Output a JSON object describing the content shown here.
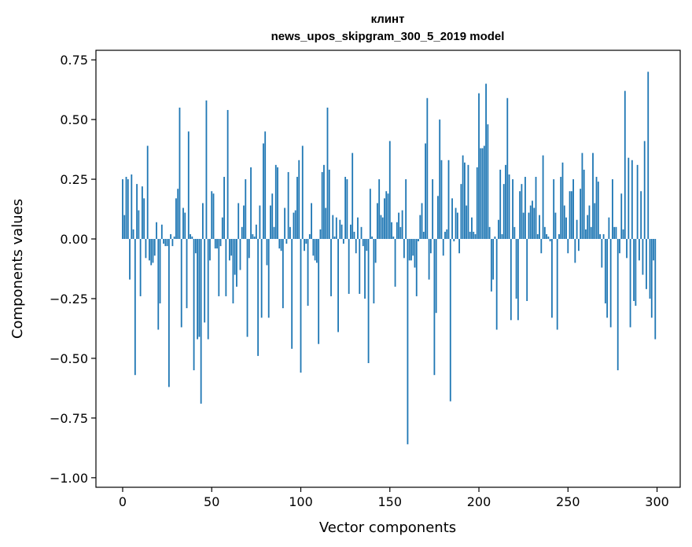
{
  "chart_data": {
    "type": "bar",
    "title_line1": "клинт",
    "title_line2": "news_upos_skipgram_300_5_2019 model",
    "xlabel": "Vector components",
    "ylabel": "Components values",
    "xlim": [
      -15,
      313
    ],
    "ylim": [
      -1.04,
      0.79
    ],
    "xticks": [
      0,
      50,
      100,
      150,
      200,
      250,
      300
    ],
    "xtick_labels": [
      "0",
      "50",
      "100",
      "150",
      "200",
      "250",
      "300"
    ],
    "yticks": [
      0.75,
      0.5,
      0.25,
      0.0,
      -0.25,
      -0.5,
      -0.75,
      -1.0
    ],
    "ytick_labels": [
      "0.75",
      "0.50",
      "0.25",
      "0.00",
      "−0.25",
      "−0.50",
      "−0.75",
      "−1.00"
    ],
    "color": "#1f77b4",
    "x": "0..299",
    "values": [
      0.25,
      0.1,
      0.26,
      0.25,
      -0.17,
      0.27,
      0.04,
      -0.57,
      0.23,
      0.12,
      -0.24,
      0.22,
      0.17,
      -0.08,
      0.39,
      -0.09,
      -0.11,
      -0.1,
      -0.07,
      0.07,
      -0.38,
      -0.27,
      0.06,
      -0.02,
      -0.03,
      -0.03,
      -0.62,
      0.02,
      -0.03,
      0.01,
      0.17,
      0.21,
      0.55,
      -0.37,
      0.13,
      0.11,
      -0.29,
      0.45,
      0.02,
      0.01,
      -0.55,
      -0.06,
      -0.42,
      -0.41,
      -0.69,
      0.15,
      -0.35,
      0.58,
      -0.42,
      -0.09,
      0.2,
      0.19,
      -0.04,
      -0.04,
      -0.24,
      -0.03,
      0.09,
      0.26,
      -0.24,
      0.54,
      -0.09,
      -0.07,
      -0.27,
      -0.15,
      -0.2,
      0.15,
      -0.13,
      0.05,
      0.14,
      0.25,
      -0.41,
      -0.08,
      0.3,
      0.02,
      0.01,
      0.06,
      -0.49,
      0.14,
      -0.33,
      0.4,
      0.45,
      -0.11,
      -0.33,
      0.14,
      0.19,
      0.05,
      0.31,
      0.3,
      -0.04,
      -0.05,
      -0.29,
      0.13,
      -0.02,
      0.28,
      0.05,
      -0.46,
      0.11,
      0.12,
      0.26,
      0.33,
      -0.56,
      0.39,
      -0.05,
      -0.02,
      -0.28,
      0.02,
      0.15,
      -0.07,
      -0.09,
      -0.1,
      -0.44,
      0.04,
      0.28,
      0.31,
      0.13,
      0.55,
      0.29,
      -0.24,
      0.1,
      0.01,
      0.09,
      -0.39,
      0.08,
      0.06,
      -0.02,
      0.26,
      0.25,
      -0.23,
      0.06,
      0.36,
      0.03,
      -0.06,
      0.09,
      -0.23,
      0.05,
      -0.03,
      -0.25,
      -0.05,
      -0.52,
      0.21,
      0.01,
      -0.27,
      -0.1,
      0.15,
      0.25,
      0.1,
      0.09,
      0.17,
      0.2,
      0.19,
      0.41,
      0.07,
      0.01,
      -0.2,
      0.07,
      0.11,
      0.05,
      0.12,
      -0.08,
      0.25,
      -0.86,
      -0.09,
      -0.09,
      -0.07,
      -0.12,
      -0.24,
      -0.01,
      0.1,
      0.15,
      0.03,
      0.4,
      0.59,
      -0.17,
      -0.06,
      0.25,
      -0.57,
      -0.31,
      0.18,
      0.5,
      0.33,
      -0.07,
      0.03,
      0.04,
      0.33,
      -0.68,
      0.17,
      -0.01,
      0.13,
      0.11,
      -0.06,
      0.23,
      0.35,
      0.32,
      0.14,
      0.31,
      0.03,
      0.09,
      0.03,
      0.02,
      0.3,
      0.61,
      0.38,
      0.38,
      0.39,
      0.65,
      0.48,
      0.05,
      -0.22,
      -0.17,
      0.01,
      -0.38,
      0.08,
      0.29,
      0.02,
      0.23,
      0.31,
      0.59,
      0.27,
      -0.34,
      0.25,
      0.05,
      -0.25,
      -0.34,
      0.2,
      0.23,
      0.11,
      0.26,
      -0.26,
      0.11,
      0.14,
      0.16,
      0.13,
      0.26,
      0.02,
      0.1,
      -0.06,
      0.35,
      0.05,
      0.02,
      0.01,
      -0.01,
      -0.33,
      0.25,
      0.11,
      -0.38,
      0.02,
      0.26,
      0.32,
      0.14,
      0.09,
      -0.06,
      0.2,
      0.2,
      0.25,
      -0.1,
      0.08,
      -0.05,
      0.21,
      0.36,
      0.29,
      0.04,
      0.1,
      0.14,
      0.05,
      0.36,
      0.15,
      0.26,
      0.24,
      0.02,
      -0.12,
      0.02,
      -0.27,
      -0.33,
      0.09,
      -0.37,
      0.25,
      0.05,
      0.05,
      -0.55,
      -0.06,
      0.19,
      0.04,
      0.62,
      -0.08,
      0.34,
      -0.37,
      0.33,
      -0.26,
      -0.28,
      0.31,
      -0.09,
      0.2,
      -0.15,
      0.41,
      -0.21,
      0.7,
      -0.25,
      -0.33,
      -0.09,
      -0.42
    ]
  }
}
